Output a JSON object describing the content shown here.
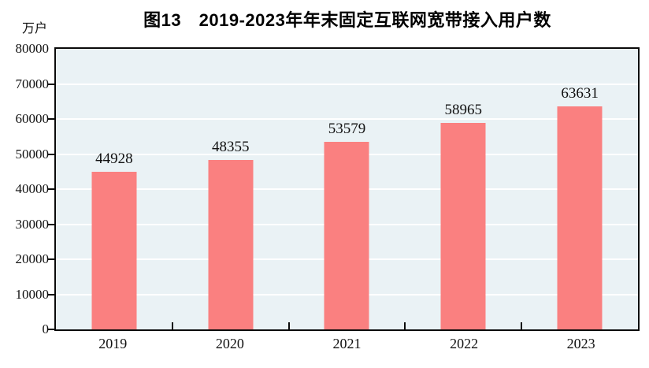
{
  "title": "图13　2019-2023年年末固定互联网宽带接入用户数",
  "y_unit_label": "万户",
  "colors": {
    "bar": "#fa8080",
    "plot_background": "#eaf2f5",
    "gridline": "#ffffff",
    "axis": "#0b0b0b",
    "text": "#111111"
  },
  "chart_data": {
    "type": "bar",
    "title": "图13　2019-2023年年末固定互联网宽带接入用户数",
    "categories": [
      "2019",
      "2020",
      "2021",
      "2022",
      "2023"
    ],
    "values": [
      44928,
      48355,
      53579,
      58965,
      63631
    ],
    "data_labels": [
      "44928",
      "48355",
      "53579",
      "58965",
      "63631"
    ],
    "xlabel": "",
    "ylabel": "万户",
    "ylim": [
      0,
      80000
    ],
    "ytick_interval": 10000,
    "yticks": [
      0,
      10000,
      20000,
      30000,
      40000,
      50000,
      60000,
      70000,
      80000
    ],
    "grid": true,
    "legend_position": "none"
  }
}
